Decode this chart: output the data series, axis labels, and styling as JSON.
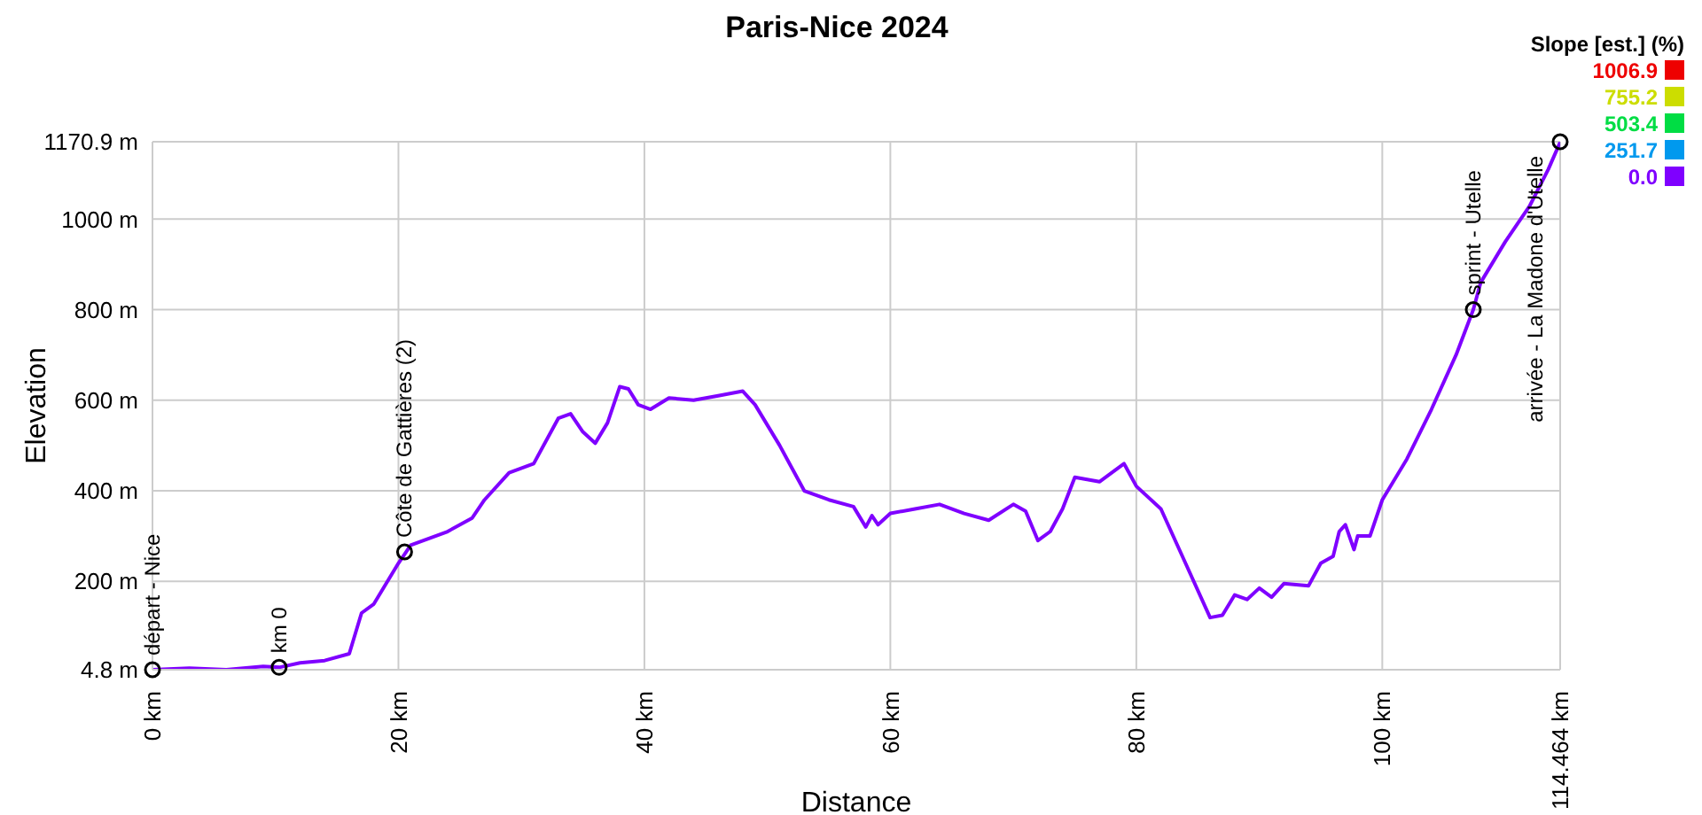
{
  "chart_data": {
    "type": "line",
    "title": "Paris-Nice 2024",
    "xlabel": "Distance",
    "ylabel": "Elevation",
    "x": [
      0,
      3,
      6,
      9,
      10.3,
      12,
      14,
      16,
      17,
      18,
      20,
      21,
      24,
      26,
      27,
      29,
      31,
      33,
      34,
      35,
      36,
      37,
      38,
      38.7,
      39.5,
      40.5,
      42,
      44,
      46,
      48,
      49,
      51,
      52,
      53,
      55,
      57,
      58,
      58.5,
      59,
      60,
      62,
      64,
      66,
      68,
      70,
      71,
      72,
      73,
      74,
      75,
      77,
      78,
      79,
      80,
      82,
      84,
      86,
      87,
      88,
      89,
      90,
      91,
      92,
      94,
      95,
      96,
      96.5,
      97,
      97.7,
      98,
      99,
      100,
      102,
      104,
      106,
      107.4,
      108,
      110,
      112,
      113.5,
      114.464
    ],
    "series": [
      {
        "color": "#7f00ff",
        "values": [
          5,
          8,
          5,
          12,
          10,
          20,
          25,
          40,
          130,
          150,
          240,
          280,
          310,
          340,
          380,
          440,
          460,
          560,
          570,
          530,
          505,
          550,
          630,
          625,
          590,
          580,
          605,
          600,
          610,
          620,
          590,
          500,
          450,
          400,
          380,
          365,
          320,
          345,
          325,
          350,
          360,
          370,
          350,
          335,
          370,
          355,
          290,
          310,
          360,
          430,
          420,
          440,
          460,
          410,
          360,
          240,
          120,
          125,
          170,
          160,
          185,
          165,
          195,
          190,
          240,
          255,
          310,
          325,
          270,
          300,
          300,
          380,
          470,
          580,
          700,
          800,
          860,
          950,
          1030,
          1110,
          1170
        ]
      }
    ],
    "xlim": [
      0,
      114.464
    ],
    "xticks": [
      {
        "value": 0,
        "label": "0 km"
      },
      {
        "value": 20,
        "label": "20 km"
      },
      {
        "value": 40,
        "label": "40 km"
      },
      {
        "value": 60,
        "label": "60 km"
      },
      {
        "value": 80,
        "label": "80 km"
      },
      {
        "value": 100,
        "label": "100 km"
      },
      {
        "value": 114.464,
        "label": "114.464 km"
      }
    ],
    "ylim": [
      4.8,
      1170.9
    ],
    "yticks": [
      {
        "value": 4.8,
        "label": "4.8 m"
      },
      {
        "value": 200,
        "label": "200 m"
      },
      {
        "value": 400,
        "label": "400 m"
      },
      {
        "value": 600,
        "label": "600 m"
      },
      {
        "value": 800,
        "label": "800 m"
      },
      {
        "value": 1000,
        "label": "1000 m"
      },
      {
        "value": 1170.9,
        "label": "1170.9 m"
      }
    ],
    "grid": true,
    "clabel": "Slope [est.] (%)",
    "clim": [
      0,
      1006.9
    ],
    "cticks": [
      1006.9,
      755.2,
      503.4,
      251.7,
      {
        "value": 0,
        "label": "0.0"
      }
    ],
    "annotations": [
      {
        "text": "départ - Nice",
        "x": 0,
        "y": 4.8
      },
      {
        "text": "km 0",
        "x": 10.3,
        "y": 10
      },
      {
        "text": "Côte de Gattières (2)",
        "x": 20.5,
        "y": 265
      },
      {
        "text": "sprint - Utelle",
        "x": 107.4,
        "y": 800
      },
      {
        "text": "arrivée - La Madone d'Utelle",
        "x": 114.464,
        "y": 1170.9
      }
    ]
  }
}
